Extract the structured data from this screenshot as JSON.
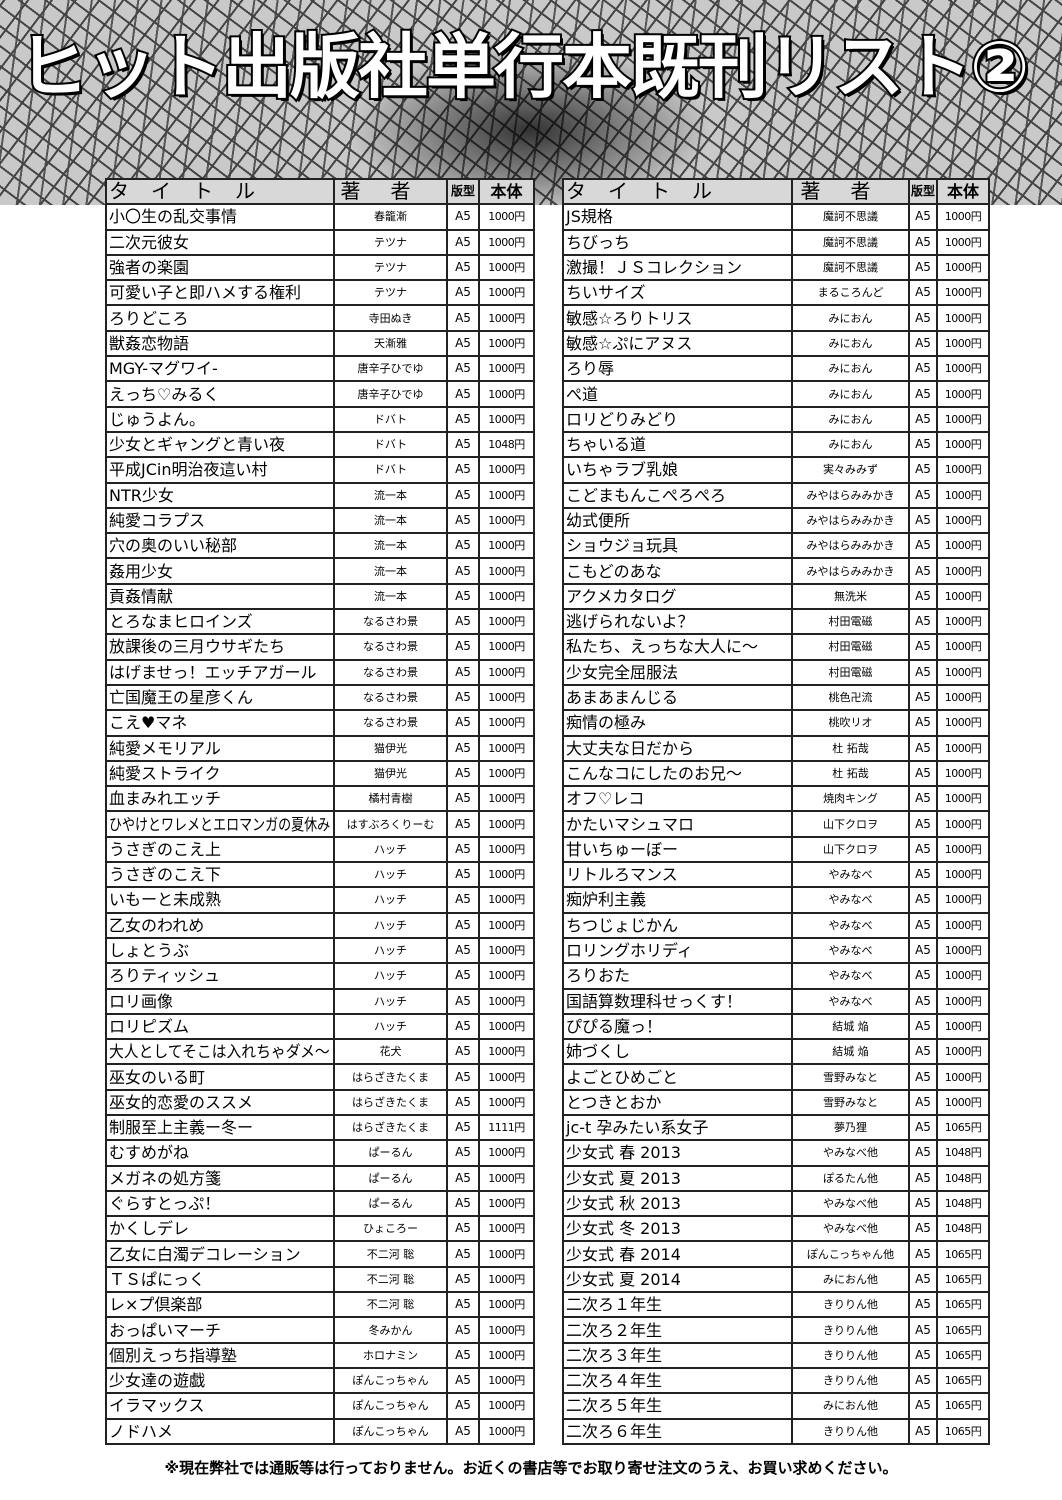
{
  "title": "ヒット出版社単行本既刊リスト②",
  "headers": {
    "title": "タイトル",
    "author": "著者",
    "size": "版型",
    "price": "本体"
  },
  "left": [
    [
      "小〇生の乱交事情",
      "春籠漸",
      "A5",
      "1000円"
    ],
    [
      "二次元彼女",
      "テツナ",
      "A5",
      "1000円"
    ],
    [
      "強者の楽園",
      "テツナ",
      "A5",
      "1000円"
    ],
    [
      "可愛い子と即ハメする権利",
      "テツナ",
      "A5",
      "1000円"
    ],
    [
      "ろりどころ",
      "寺田ぬき",
      "A5",
      "1000円"
    ],
    [
      "獣姦恋物語",
      "天漸雅",
      "A5",
      "1000円"
    ],
    [
      "MGY-マグワイ-",
      "唐辛子ひでゆ",
      "A5",
      "1000円"
    ],
    [
      "えっち♡みるく",
      "唐辛子ひでゆ",
      "A5",
      "1000円"
    ],
    [
      "じゅうよん。",
      "ドバト",
      "A5",
      "1000円"
    ],
    [
      "少女とギャングと青い夜",
      "ドバト",
      "A5",
      "1048円"
    ],
    [
      "平成JCin明治夜這い村",
      "ドバト",
      "A5",
      "1000円"
    ],
    [
      "NTR少女",
      "流一本",
      "A5",
      "1000円"
    ],
    [
      "純愛コラプス",
      "流一本",
      "A5",
      "1000円"
    ],
    [
      "穴の奥のいい秘部",
      "流一本",
      "A5",
      "1000円"
    ],
    [
      "姦用少女",
      "流一本",
      "A5",
      "1000円"
    ],
    [
      "貢姦情献",
      "流一本",
      "A5",
      "1000円"
    ],
    [
      "とろなまヒロインズ",
      "なるさわ景",
      "A5",
      "1000円"
    ],
    [
      "放課後の三月ウサギたち",
      "なるさわ景",
      "A5",
      "1000円"
    ],
    [
      "はげませっ！エッチアガール",
      "なるさわ景",
      "A5",
      "1000円"
    ],
    [
      "亡国魔王の星彦くん",
      "なるさわ景",
      "A5",
      "1000円"
    ],
    [
      "こえ♥マネ",
      "なるさわ景",
      "A5",
      "1000円"
    ],
    [
      "純愛メモリアル",
      "猫伊光",
      "A5",
      "1000円"
    ],
    [
      "純愛ストライク",
      "猫伊光",
      "A5",
      "1000円"
    ],
    [
      "血まみれエッチ",
      "橘村青樹",
      "A5",
      "1000円"
    ],
    [
      "ひやけとワレメとエロマンガの夏休み",
      "はすぶろくりーむ",
      "A5",
      "1000円"
    ],
    [
      "うさぎのこえ上",
      "ハッチ",
      "A5",
      "1000円"
    ],
    [
      "うさぎのこえ下",
      "ハッチ",
      "A5",
      "1000円"
    ],
    [
      "いもーと未成熟",
      "ハッチ",
      "A5",
      "1000円"
    ],
    [
      "乙女のわれめ",
      "ハッチ",
      "A5",
      "1000円"
    ],
    [
      "しょとうぶ",
      "ハッチ",
      "A5",
      "1000円"
    ],
    [
      "ろりティッシュ",
      "ハッチ",
      "A5",
      "1000円"
    ],
    [
      "ロリ画像",
      "ハッチ",
      "A5",
      "1000円"
    ],
    [
      "ロリピズム",
      "ハッチ",
      "A5",
      "1000円"
    ],
    [
      "大人としてそこは入れちゃダメ～",
      "花犬",
      "A5",
      "1000円"
    ],
    [
      "巫女のいる町",
      "はらざきたくま",
      "A5",
      "1000円"
    ],
    [
      "巫女的恋愛のススメ",
      "はらざきたくま",
      "A5",
      "1000円"
    ],
    [
      "制服至上主義ー冬ー",
      "はらざきたくま",
      "A5",
      "1111円"
    ],
    [
      "むすめがね",
      "ぱーるん",
      "A5",
      "1000円"
    ],
    [
      "メガネの処方箋",
      "ぱーるん",
      "A5",
      "1000円"
    ],
    [
      "ぐらすとっぷ！",
      "ぱーるん",
      "A5",
      "1000円"
    ],
    [
      "かくしデレ",
      "ひょころー",
      "A5",
      "1000円"
    ],
    [
      "乙女に白濁デコレーション",
      "不二河 聡",
      "A5",
      "1000円"
    ],
    [
      "ＴＳぱにっく",
      "不二河 聡",
      "A5",
      "1000円"
    ],
    [
      "レ×プ倶楽部",
      "不二河 聡",
      "A5",
      "1000円"
    ],
    [
      "おっぱいマーチ",
      "冬みかん",
      "A5",
      "1000円"
    ],
    [
      "個別えっち指導塾",
      "ホロナミン",
      "A5",
      "1000円"
    ],
    [
      "少女達の遊戯",
      "ぽんこっちゃん",
      "A5",
      "1000円"
    ],
    [
      "イラマックス",
      "ぽんこっちゃん",
      "A5",
      "1000円"
    ],
    [
      "ノドハメ",
      "ぽんこっちゃん",
      "A5",
      "1000円"
    ]
  ],
  "right": [
    [
      "JS規格",
      "魔訶不思議",
      "A5",
      "1000円"
    ],
    [
      "ちびっち",
      "魔訶不思議",
      "A5",
      "1000円"
    ],
    [
      "激撮！ＪＳコレクション",
      "魔訶不思議",
      "A5",
      "1000円"
    ],
    [
      "ちいサイズ",
      "まるころんど",
      "A5",
      "1000円"
    ],
    [
      "敏感☆ろりトリス",
      "みにおん",
      "A5",
      "1000円"
    ],
    [
      "敏感☆ぷにアヌス",
      "みにおん",
      "A5",
      "1000円"
    ],
    [
      "ろり辱",
      "みにおん",
      "A5",
      "1000円"
    ],
    [
      "ぺ道",
      "みにおん",
      "A5",
      "1000円"
    ],
    [
      "ロリどりみどり",
      "みにおん",
      "A5",
      "1000円"
    ],
    [
      "ちゃいる道",
      "みにおん",
      "A5",
      "1000円"
    ],
    [
      "いちゃラブ乳娘",
      "実々みみず",
      "A5",
      "1000円"
    ],
    [
      "こどまもんこぺろぺろ",
      "みやはらみみかき",
      "A5",
      "1000円"
    ],
    [
      "幼式便所",
      "みやはらみみかき",
      "A5",
      "1000円"
    ],
    [
      "ショウジョ玩具",
      "みやはらみみかき",
      "A5",
      "1000円"
    ],
    [
      "こもどのあな",
      "みやはらみみかき",
      "A5",
      "1000円"
    ],
    [
      "アクメカタログ",
      "無洗米",
      "A5",
      "1000円"
    ],
    [
      "逃げられないよ？",
      "村田電磁",
      "A5",
      "1000円"
    ],
    [
      "私たち、えっちな大人に～",
      "村田電磁",
      "A5",
      "1000円"
    ],
    [
      "少女完全屈服法",
      "村田電磁",
      "A5",
      "1000円"
    ],
    [
      "あまあまんじる",
      "桃色卍流",
      "A5",
      "1000円"
    ],
    [
      "痴情の極み",
      "桃吹リオ",
      "A5",
      "1000円"
    ],
    [
      "大丈夫な日だから",
      "杜 拓哉",
      "A5",
      "1000円"
    ],
    [
      "こんなコにしたのお兄～",
      "杜 拓哉",
      "A5",
      "1000円"
    ],
    [
      "オフ♡レコ",
      "焼肉キング",
      "A5",
      "1000円"
    ],
    [
      "かたいマシュマロ",
      "山下クロヲ",
      "A5",
      "1000円"
    ],
    [
      "甘いちゅーぼー",
      "山下クロヲ",
      "A5",
      "1000円"
    ],
    [
      "リトルろマンス",
      "やみなべ",
      "A5",
      "1000円"
    ],
    [
      "痴炉利主義",
      "やみなべ",
      "A5",
      "1000円"
    ],
    [
      "ちつじょじかん",
      "やみなべ",
      "A5",
      "1000円"
    ],
    [
      "ロリングホリディ",
      "やみなべ",
      "A5",
      "1000円"
    ],
    [
      "ろりおた",
      "やみなべ",
      "A5",
      "1000円"
    ],
    [
      "国語算数理科せっくす！",
      "やみなべ",
      "A5",
      "1000円"
    ],
    [
      "ぴぴる魔っ！",
      "結城 焔",
      "A5",
      "1000円"
    ],
    [
      "姉づくし",
      "結城 焔",
      "A5",
      "1000円"
    ],
    [
      "よごとひめごと",
      "雪野みなと",
      "A5",
      "1000円"
    ],
    [
      "とつきとおか",
      "雪野みなと",
      "A5",
      "1000円"
    ],
    [
      "jc-t 孕みたい系女子",
      "夢乃狸",
      "A5",
      "1065円"
    ],
    [
      "少女式 春 2013",
      "やみなべ他",
      "A5",
      "1048円"
    ],
    [
      "少女式 夏 2013",
      "ぽるたん他",
      "A5",
      "1048円"
    ],
    [
      "少女式 秋 2013",
      "やみなべ他",
      "A5",
      "1048円"
    ],
    [
      "少女式 冬 2013",
      "やみなべ他",
      "A5",
      "1048円"
    ],
    [
      "少女式 春 2014",
      "ぽんこっちゃん他",
      "A5",
      "1065円"
    ],
    [
      "少女式 夏 2014",
      "みにおん他",
      "A5",
      "1065円"
    ],
    [
      "二次ろ１年生",
      "きりりん他",
      "A5",
      "1065円"
    ],
    [
      "二次ろ２年生",
      "きりりん他",
      "A5",
      "1065円"
    ],
    [
      "二次ろ３年生",
      "きりりん他",
      "A5",
      "1065円"
    ],
    [
      "二次ろ４年生",
      "きりりん他",
      "A5",
      "1065円"
    ],
    [
      "二次ろ５年生",
      "みにおん他",
      "A5",
      "1065円"
    ],
    [
      "二次ろ６年生",
      "きりりん他",
      "A5",
      "1065円"
    ]
  ],
  "note": "※現在弊社では通販等は行っておりません。お近くの書店等でお取り寄せ注文のうえ、お買い求めください。"
}
